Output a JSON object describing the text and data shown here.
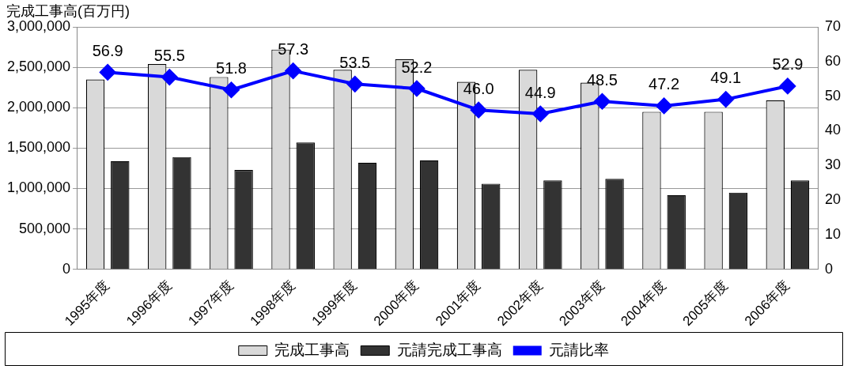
{
  "chart_data": {
    "type": "bar",
    "ylabel": "完成工事高(百万円)",
    "categories": [
      "1995年度",
      "1996年度",
      "1997年度",
      "1998年度",
      "1999年度",
      "2000年度",
      "2001年度",
      "2002年度",
      "2003年度",
      "2004年度",
      "2005年度",
      "2006年度"
    ],
    "series": [
      {
        "name": "完成工事高",
        "color": "#d9d9d9",
        "values": [
          2350000,
          2540000,
          2380000,
          2720000,
          2470000,
          2600000,
          2320000,
          2470000,
          2310000,
          1950000,
          1950000,
          2090000
        ]
      },
      {
        "name": "元請完成工事高",
        "color": "#333333",
        "values": [
          1340000,
          1390000,
          1230000,
          1570000,
          1320000,
          1350000,
          1060000,
          1100000,
          1120000,
          920000,
          950000,
          1100000
        ]
      },
      {
        "name": "元請比率",
        "type": "line",
        "axis": "y2",
        "color": "#0000ff",
        "marker": "diamond",
        "values": [
          56.9,
          55.5,
          51.8,
          57.3,
          53.5,
          52.2,
          46.0,
          44.9,
          48.5,
          47.2,
          49.1,
          52.9
        ],
        "value_labels": [
          "56.9",
          "55.5",
          "51.8",
          "57.3",
          "53.5",
          "52.2",
          "46.0",
          "44.9",
          "48.5",
          "47.2",
          "49.1",
          "52.9"
        ]
      }
    ],
    "ylim": [
      0,
      3000000
    ],
    "yticks": [
      {
        "value": 0,
        "label": "0"
      },
      {
        "value": 500000,
        "label": "500,000"
      },
      {
        "value": 1000000,
        "label": "1,000,000"
      },
      {
        "value": 1500000,
        "label": "1,500,000"
      },
      {
        "value": 2000000,
        "label": "2,000,000"
      },
      {
        "value": 2500000,
        "label": "2,500,000"
      },
      {
        "value": 3000000,
        "label": "3,000,000"
      }
    ],
    "y2lim": [
      0,
      70
    ],
    "y2ticks": [
      0,
      10,
      20,
      30,
      40,
      50,
      60,
      70
    ],
    "grid": "y",
    "legend": "bottom"
  }
}
